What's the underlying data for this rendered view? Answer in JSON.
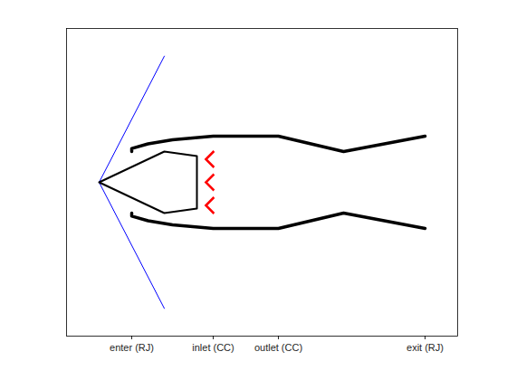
{
  "chart_data": {
    "type": "line",
    "xlim": [
      -2,
      10
    ],
    "ylim": [
      -5,
      5
    ],
    "xticks": [
      {
        "value": 0,
        "label": "enter (RJ)"
      },
      {
        "value": 2.5,
        "label": "inlet (CC)"
      },
      {
        "value": 4.5,
        "label": "outlet (CC)"
      },
      {
        "value": 9,
        "label": "exit (RJ)"
      }
    ],
    "yticks": [],
    "tick_labels": "x",
    "grid": false,
    "series": [
      {
        "color": "#0000ff",
        "line_style": "thin",
        "x": [
          -1,
          1
        ],
        "values": [
          0,
          4.1
        ]
      },
      {
        "color": "#0000ff",
        "line_style": "thin",
        "x": [
          -1,
          1
        ],
        "values": [
          0,
          -4.1
        ]
      },
      {
        "color": "#000000",
        "line_style": "medium",
        "x": [
          -1,
          1,
          2,
          2,
          1,
          -1
        ],
        "values": [
          0,
          1,
          0.85,
          -0.85,
          -1,
          0
        ]
      },
      {
        "color": "#000000",
        "line_style": "thick",
        "x": [
          0,
          0,
          0.5,
          1.25,
          2.5,
          4.5,
          6.5,
          9
        ],
        "values": [
          1.0,
          1.1,
          1.25,
          1.38,
          1.5,
          1.5,
          1.0,
          1.5
        ]
      },
      {
        "color": "#000000",
        "line_style": "thick",
        "x": [
          0,
          0,
          0.5,
          1.25,
          2.5,
          4.5,
          6.5,
          9
        ],
        "values": [
          -1.0,
          -1.1,
          -1.25,
          -1.38,
          -1.5,
          -1.5,
          -1.0,
          -1.5
        ]
      },
      {
        "type": "scatter",
        "color": "#ff0000",
        "marker": "<",
        "x": [
          2.4,
          2.4,
          2.4
        ],
        "values": [
          0.75,
          0,
          -0.75
        ]
      }
    ]
  }
}
